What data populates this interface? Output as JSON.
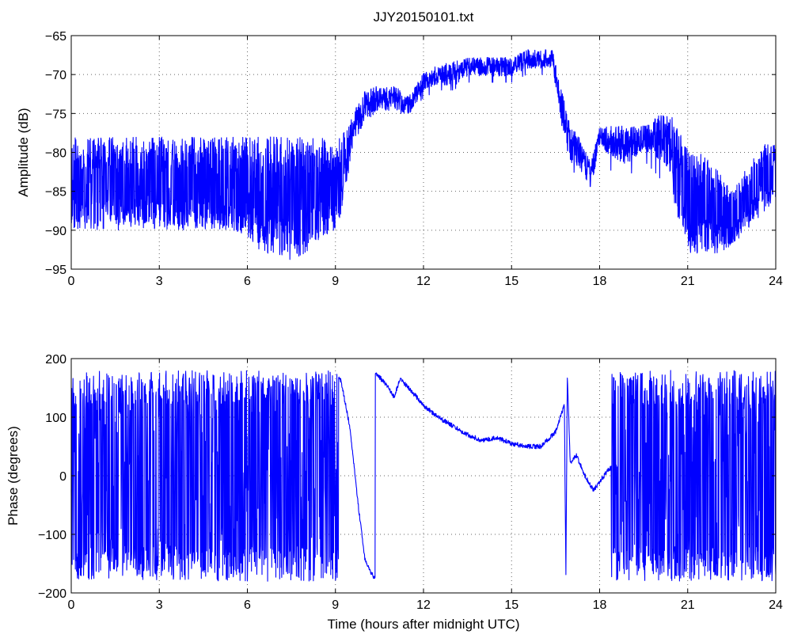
{
  "chart_data": [
    {
      "type": "line",
      "title": "JJY20150101.txt",
      "xlabel": "",
      "ylabel": "Amplitude (dB)",
      "xlim": [
        0,
        24
      ],
      "ylim": [
        -95,
        -65
      ],
      "xticks": [
        0,
        3,
        6,
        9,
        12,
        15,
        18,
        21,
        24
      ],
      "yticks": [
        -95,
        -90,
        -85,
        -80,
        -75,
        -70,
        -65
      ],
      "grid": true,
      "color": "#0000ff",
      "series": [
        {
          "x": [
            0,
            0.5,
            1,
            1.5,
            2,
            2.5,
            3,
            3.5,
            4,
            4.5,
            5,
            5.5,
            6,
            6.5,
            7,
            7.5,
            8,
            8.5,
            9,
            9.3,
            9.6,
            10,
            10.5,
            11,
            11.5,
            12,
            12.5,
            13,
            13.5,
            14,
            14.5,
            15,
            15.5,
            16,
            16.4,
            16.7,
            17,
            17.3,
            17.7,
            18,
            18.5,
            19,
            19.5,
            20,
            20.5,
            21,
            21.5,
            22,
            22.5,
            23,
            23.5,
            24
          ],
          "y": [
            -89,
            -85,
            -84,
            -85,
            -84,
            -84,
            -85,
            -84,
            -85,
            -84,
            -84,
            -85,
            -86,
            -87,
            -87,
            -88,
            -87,
            -86,
            -87,
            -82,
            -77,
            -74,
            -73,
            -73,
            -74,
            -71,
            -70,
            -70,
            -69,
            -69,
            -69,
            -69,
            -68,
            -68,
            -68,
            -74,
            -79,
            -80,
            -83,
            -78,
            -79,
            -79,
            -78,
            -78,
            -79,
            -86,
            -89,
            -90,
            -91,
            -88,
            -84,
            -82
          ],
          "range_low": [
            -90,
            -90,
            -90,
            -90,
            -90,
            -90,
            -90,
            -90,
            -90,
            -90,
            -90,
            -90,
            -91,
            -93,
            -93,
            -94,
            -93,
            -91,
            -90,
            -87,
            -80,
            -77,
            -75,
            -75,
            -75,
            -73,
            -72,
            -72,
            -71,
            -71,
            -71,
            -71,
            -70,
            -70,
            -70,
            -77,
            -83,
            -82,
            -85,
            -80,
            -83,
            -83,
            -81,
            -83,
            -86,
            -93,
            -93,
            -93,
            -92,
            -90,
            -88,
            -86
          ],
          "range_high": [
            -78,
            -78,
            -78,
            -78,
            -78,
            -78,
            -78,
            -78,
            -78,
            -78,
            -78,
            -78,
            -78,
            -78,
            -78,
            -78,
            -78,
            -78,
            -79,
            -77,
            -75,
            -72,
            -71,
            -71,
            -72,
            -70,
            -69,
            -68,
            -68,
            -68,
            -68,
            -68,
            -67,
            -67,
            -67,
            -71,
            -77,
            -77,
            -81,
            -77,
            -77,
            -77,
            -77,
            -76,
            -76,
            -79,
            -80,
            -82,
            -85,
            -82,
            -79,
            -79
          ]
        }
      ]
    },
    {
      "type": "line",
      "title": "",
      "xlabel": "Time (hours after midnight UTC)",
      "ylabel": "Phase (degrees)",
      "xlim": [
        0,
        24
      ],
      "ylim": [
        -200,
        200
      ],
      "xticks": [
        0,
        3,
        6,
        9,
        12,
        15,
        18,
        21,
        24
      ],
      "yticks": [
        -200,
        -100,
        0,
        100,
        200
      ],
      "grid": true,
      "color": "#0000ff",
      "series": [
        {
          "x": [
            0,
            9.1,
            9.2,
            9.5,
            9.8,
            10.0,
            10.2,
            10.35,
            10.35,
            10.8,
            11.0,
            11.2,
            11.5,
            12,
            12.5,
            13,
            13.5,
            14,
            14.5,
            15,
            15.5,
            16,
            16.5,
            16.8,
            16.85,
            16.9,
            17.0,
            17.2,
            17.5,
            17.8,
            18.0,
            18.3,
            18.4,
            24
          ],
          "y": [
            0,
            170,
            160,
            80,
            -60,
            -140,
            -165,
            -175,
            178,
            150,
            135,
            165,
            150,
            120,
            100,
            85,
            70,
            60,
            65,
            55,
            50,
            50,
            75,
            120,
            -170,
            170,
            20,
            35,
            0,
            -25,
            -10,
            10,
            15,
            0
          ],
          "wrapping_segments": [
            [
              0,
              9.1
            ],
            [
              18.4,
              24
            ]
          ],
          "wrap_range": [
            -180,
            180
          ]
        }
      ]
    }
  ]
}
